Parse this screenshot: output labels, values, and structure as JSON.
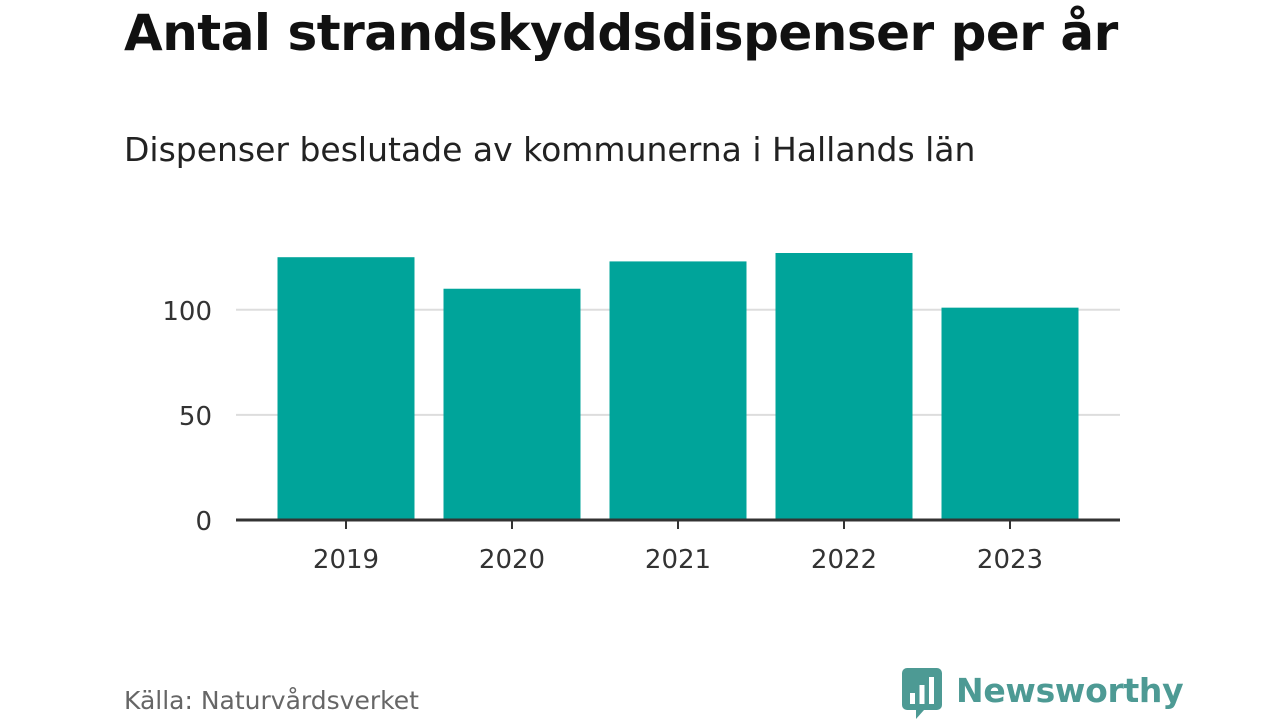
{
  "chart_data": {
    "type": "bar",
    "title": "Antal strandskyddsdispenser per år",
    "subtitle": "Dispenser beslutade av kommunerna i Hallands län",
    "categories": [
      "2019",
      "2020",
      "2021",
      "2022",
      "2023"
    ],
    "values": [
      125,
      110,
      123,
      127,
      101
    ],
    "ylim": [
      0,
      127
    ],
    "yticks": [
      0,
      50,
      100
    ],
    "ytick_labels": [
      "0",
      "50",
      "100"
    ],
    "xlabel": "",
    "ylabel": "",
    "grid": true,
    "legend": "none",
    "colors": {
      "bar": "#00a49a",
      "grid": "#dddddd",
      "axis": "#333333"
    }
  },
  "footer": {
    "source": "Källa: Naturvårdsverket",
    "logo_text": "Newsworthy",
    "logo_color": "#4d9a94"
  }
}
